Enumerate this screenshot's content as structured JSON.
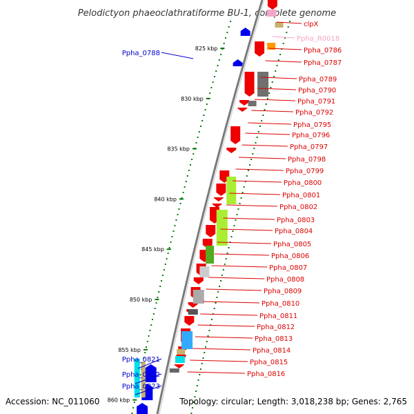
{
  "title": "Pelodictyon phaeoclathratiforme BU-1, complete genome",
  "footer": {
    "accession": "Accession: NC_011060",
    "summary": "Topology: circular; Length: 3,018,238 bp; Genes: 2,765"
  },
  "colors": {
    "cds_forward": "#ee0000",
    "cds_reverse": "#0000ee",
    "rna": "#f4a6c8",
    "backbone": "#7a7a7a",
    "tick": "#007700",
    "connector_red": "#dd0000",
    "connector_blue": "#0000cc"
  },
  "ticks": [
    {
      "label": "825 kbp"
    },
    {
      "label": "830 kbp"
    },
    {
      "label": "835 kbp"
    },
    {
      "label": "840 kbp"
    },
    {
      "label": "845 kbp"
    },
    {
      "label": "850 kbp"
    },
    {
      "label": "855 kbp"
    },
    {
      "label": "860 kbp"
    }
  ],
  "left_labels": [
    {
      "text": "Ppha_0788"
    },
    {
      "text": "Ppha_0821"
    },
    {
      "text": "Ppha_0822"
    },
    {
      "text": "Ppha_0823"
    }
  ],
  "right_labels": [
    {
      "text": "clpX",
      "kind": "cds"
    },
    {
      "text": "Ppha_R0018",
      "kind": "rna"
    },
    {
      "text": "Ppha_0786",
      "kind": "cds"
    },
    {
      "text": "Ppha_0787",
      "kind": "cds"
    },
    {
      "text": "Ppha_0789",
      "kind": "cds"
    },
    {
      "text": "Ppha_0790",
      "kind": "cds"
    },
    {
      "text": "Ppha_0791",
      "kind": "cds"
    },
    {
      "text": "Ppha_0792",
      "kind": "cds"
    },
    {
      "text": "Ppha_0795",
      "kind": "cds"
    },
    {
      "text": "Ppha_0796",
      "kind": "cds"
    },
    {
      "text": "Ppha_0797",
      "kind": "cds"
    },
    {
      "text": "Ppha_0798",
      "kind": "cds"
    },
    {
      "text": "Ppha_0799",
      "kind": "cds"
    },
    {
      "text": "Ppha_0800",
      "kind": "cds"
    },
    {
      "text": "Ppha_0801",
      "kind": "cds"
    },
    {
      "text": "Ppha_0802",
      "kind": "cds"
    },
    {
      "text": "Ppha_0803",
      "kind": "cds"
    },
    {
      "text": "Ppha_0804",
      "kind": "cds"
    },
    {
      "text": "Ppha_0805",
      "kind": "cds"
    },
    {
      "text": "Ppha_0806",
      "kind": "cds"
    },
    {
      "text": "Ppha_0807",
      "kind": "cds"
    },
    {
      "text": "Ppha_0808",
      "kind": "cds"
    },
    {
      "text": "Ppha_0809",
      "kind": "cds"
    },
    {
      "text": "Ppha_0810",
      "kind": "cds"
    },
    {
      "text": "Ppha_0811",
      "kind": "cds"
    },
    {
      "text": "Ppha_0812",
      "kind": "cds"
    },
    {
      "text": "Ppha_0813",
      "kind": "cds"
    },
    {
      "text": "Ppha_0814",
      "kind": "cds"
    },
    {
      "text": "Ppha_0815",
      "kind": "cds"
    },
    {
      "text": "Ppha_0816",
      "kind": "cds"
    }
  ]
}
